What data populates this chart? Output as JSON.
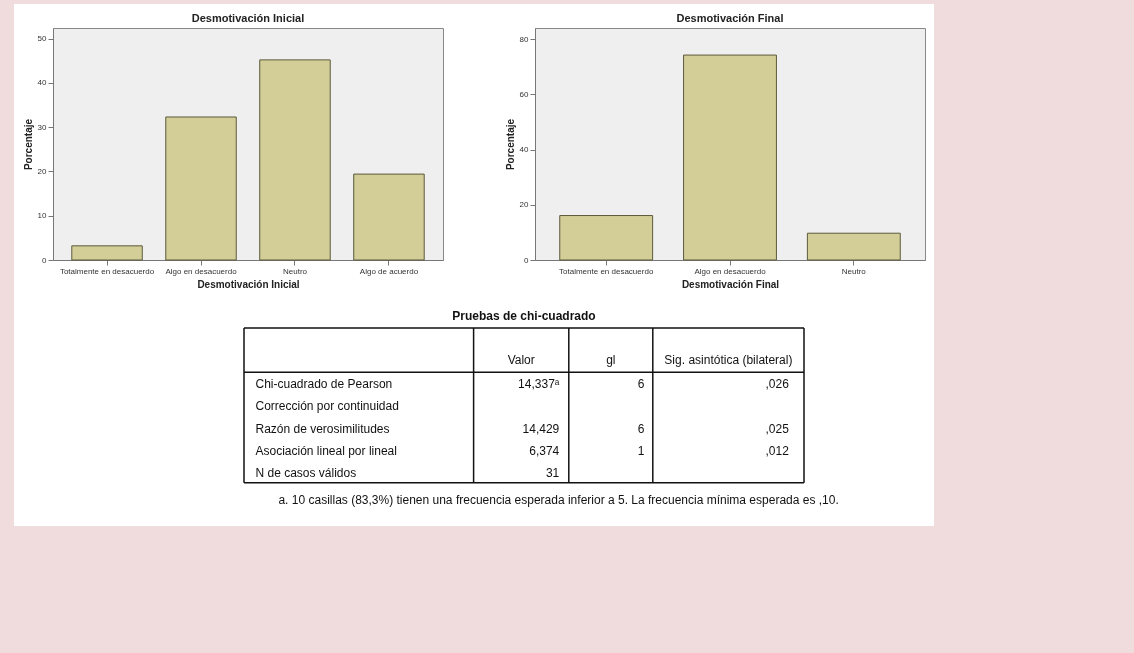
{
  "chart_data": [
    {
      "type": "bar",
      "title": "Desmotivación Inicial",
      "xlabel": "Desmotivación Inicial",
      "ylabel": "Porcentaje",
      "categories": [
        "Totalmente en desacuerdo",
        "Algo en desacuerdo",
        "Neutro",
        "Algo de acuerdo"
      ],
      "values": [
        3.2,
        32.3,
        45.2,
        19.4
      ],
      "color": "#d3ce98",
      "ylim": [
        0,
        52.4
      ],
      "yticks": [
        0,
        10,
        20,
        30,
        40,
        50
      ],
      "grid": false,
      "legend": false
    },
    {
      "type": "bar",
      "title": "Desmotivación Final",
      "xlabel": "Desmotivación Final",
      "ylabel": "Porcentaje",
      "categories": [
        "Totalmente en desacuerdo",
        "Algo en desacuerdo",
        "Neutro"
      ],
      "values": [
        16.1,
        74.2,
        9.7
      ],
      "color": "#d3ce98",
      "ylim": [
        0,
        84
      ],
      "yticks": [
        0,
        20,
        40,
        60,
        80
      ],
      "grid": false,
      "legend": false
    },
    {
      "type": "other",
      "title": "Pruebas de chi-cuadrado",
      "categories": [
        "Valor",
        "gl",
        "Sig. asintótica (bilateral)"
      ],
      "y_categories": [
        "Chi-cuadrado de Pearson",
        "Corrección por continuidad",
        "Razón de verosimilitudes",
        "Asociación lineal por lineal",
        "N de casos válidos"
      ],
      "cell_labels": [
        [
          "14,337ᵃ",
          "6",
          ",026"
        ],
        [
          null,
          null,
          null
        ],
        [
          "14,429",
          "6",
          ",025"
        ],
        [
          "6,374",
          "1",
          ",012"
        ],
        [
          "31",
          null,
          null
        ]
      ],
      "annotations": [
        "a. 10 casillas (83,3%) tienen una frecuencia esperada inferior a 5. La frecuencia mínima esperada es ,10."
      ]
    }
  ]
}
